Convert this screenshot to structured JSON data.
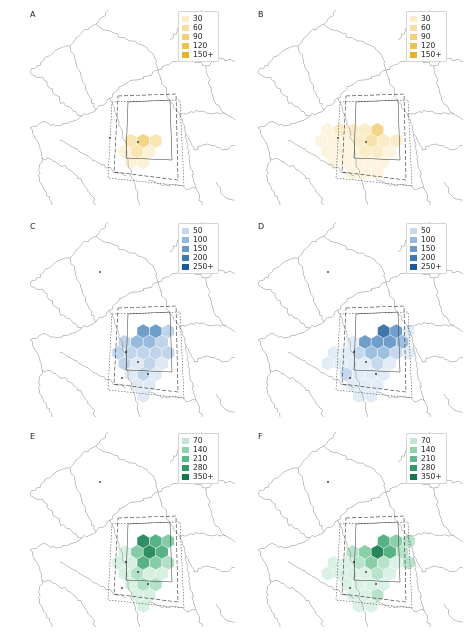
{
  "panels": [
    {
      "letter": "A",
      "legend": [
        "30",
        "60",
        "90",
        "120",
        "150+"
      ],
      "legend_colors": [
        "#fbecc8",
        "#f8dfa0",
        "#f3cf78",
        "#edc052",
        "#e6b030"
      ],
      "hex_colors": [
        "#fcf1d4",
        "#f8e2a8",
        "#f1d07a",
        "#e8bb45",
        "#dfa91f"
      ],
      "spread": "compact"
    },
    {
      "letter": "B",
      "legend": [
        "30",
        "60",
        "90",
        "120",
        "150+"
      ],
      "legend_colors": [
        "#fbecc8",
        "#f8dfa0",
        "#f3cf78",
        "#edc052",
        "#e6b030"
      ],
      "hex_colors": [
        "#fcf3dc",
        "#faeac0",
        "#f6dfa2",
        "#f1d07a",
        "#eac35a"
      ],
      "spread": "wide"
    },
    {
      "letter": "C",
      "legend": [
        "50",
        "100",
        "150",
        "200",
        "250+"
      ],
      "legend_colors": [
        "#c6d9ec",
        "#94b9db",
        "#6899c8",
        "#3f77b2",
        "#1f5896"
      ],
      "hex_colors": [
        "#dbe7f3",
        "#b9d0e7",
        "#8db3d8",
        "#5f93c3",
        "#2f66a4"
      ],
      "spread": "medium"
    },
    {
      "letter": "D",
      "legend": [
        "50",
        "100",
        "150",
        "200",
        "250+"
      ],
      "legend_colors": [
        "#c6d9ec",
        "#94b9db",
        "#6899c8",
        "#3f77b2",
        "#1f5896"
      ],
      "hex_colors": [
        "#dfeaf5",
        "#bfd4ea",
        "#94b9db",
        "#6193c4",
        "#2f66a4"
      ],
      "spread": "east"
    },
    {
      "letter": "E",
      "legend": [
        "70",
        "140",
        "210",
        "280",
        "350+"
      ],
      "legend_colors": [
        "#c3e6d3",
        "#90d1ae",
        "#5cb98a",
        "#2f9c68",
        "#10784a"
      ],
      "hex_colors": [
        "#d4eedf",
        "#a9ddc0",
        "#79c69d",
        "#45ab78",
        "#198253"
      ],
      "spread": "medium"
    },
    {
      "letter": "F",
      "legend": [
        "70",
        "140",
        "210",
        "280",
        "350+"
      ],
      "legend_colors": [
        "#c3e6d3",
        "#90d1ae",
        "#5cb98a",
        "#2f9c68",
        "#10784a"
      ],
      "hex_colors": [
        "#d8f0e3",
        "#b0e0c5",
        "#7ec9a1",
        "#45ab78",
        "#10784a"
      ],
      "spread": "east"
    }
  ]
}
